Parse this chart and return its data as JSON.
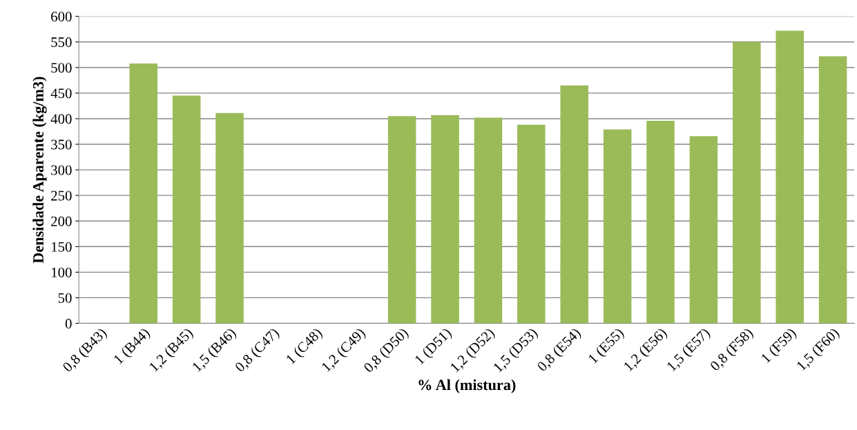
{
  "chart_data": {
    "type": "bar",
    "xlabel": "% Al (mistura)",
    "ylabel": "Densidade Aparente (kg/m3)",
    "categories": [
      "0,8 (B43)",
      "1 (B44)",
      "1,2 (B45)",
      "1,5 (B46)",
      "0,8 (C47)",
      "1 (C48)",
      "1,2 (C49)",
      "0,8 (D50)",
      "1 (D51)",
      "1,2 (D52)",
      "1,5 (D53)",
      "0,8 (E54)",
      "1 (E55)",
      "1,2 (E56)",
      "1,5 (E57)",
      "0,8 (F58)",
      "1 (F59)",
      "1,5 (F60)"
    ],
    "values": [
      null,
      508,
      445,
      411,
      null,
      null,
      null,
      405,
      407,
      402,
      388,
      465,
      379,
      396,
      366,
      550,
      572,
      522
    ],
    "color": "#9bbb59",
    "ylim": [
      0,
      600
    ],
    "yticks": [
      0,
      50,
      100,
      150,
      200,
      250,
      300,
      350,
      400,
      450,
      500,
      550,
      600
    ],
    "grid": "y",
    "legend": false
  }
}
